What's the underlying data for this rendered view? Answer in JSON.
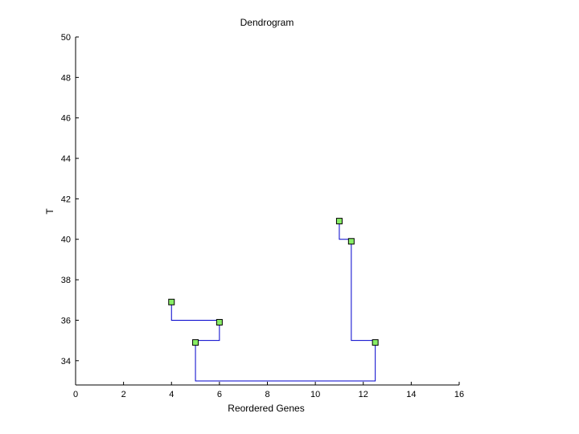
{
  "chart_data": {
    "type": "dendrogram",
    "title": "Dendrogram",
    "xlabel": "Reordered Genes",
    "ylabel": "T",
    "xlim": [
      0,
      16
    ],
    "ylim": [
      32.8,
      50
    ],
    "xticks": [
      0,
      2,
      4,
      6,
      8,
      10,
      12,
      14,
      16
    ],
    "yticks": [
      34,
      36,
      38,
      40,
      42,
      44,
      46,
      48,
      50
    ],
    "grid": false,
    "line_color": "#0000cc",
    "node_fill": "#88ee66",
    "node_stroke": "#000000",
    "nodes": [
      {
        "x": 4,
        "y": 36.9
      },
      {
        "x": 6,
        "y": 35.9
      },
      {
        "x": 5,
        "y": 34.9
      },
      {
        "x": 11,
        "y": 40.9
      },
      {
        "x": 11.5,
        "y": 39.9
      },
      {
        "x": 12.5,
        "y": 34.9
      }
    ],
    "links": [
      {
        "left_x": 4,
        "left_top": 36.9,
        "right_x": 6,
        "right_top": 35.9,
        "merge_y": 36
      },
      {
        "left_x": 5,
        "left_top": 34.9,
        "right_x": 6,
        "right_top": 36,
        "merge_y": 35
      },
      {
        "left_x": 11,
        "left_top": 40.9,
        "right_x": 11.5,
        "right_top": 39.9,
        "merge_y": 40
      },
      {
        "left_x": 11.5,
        "left_top": 40,
        "right_x": 12.5,
        "right_top": 34.9,
        "merge_y": 35
      },
      {
        "left_x": 5,
        "left_top": 35,
        "right_x": 12.5,
        "right_top": 35,
        "merge_y": 33
      }
    ]
  }
}
